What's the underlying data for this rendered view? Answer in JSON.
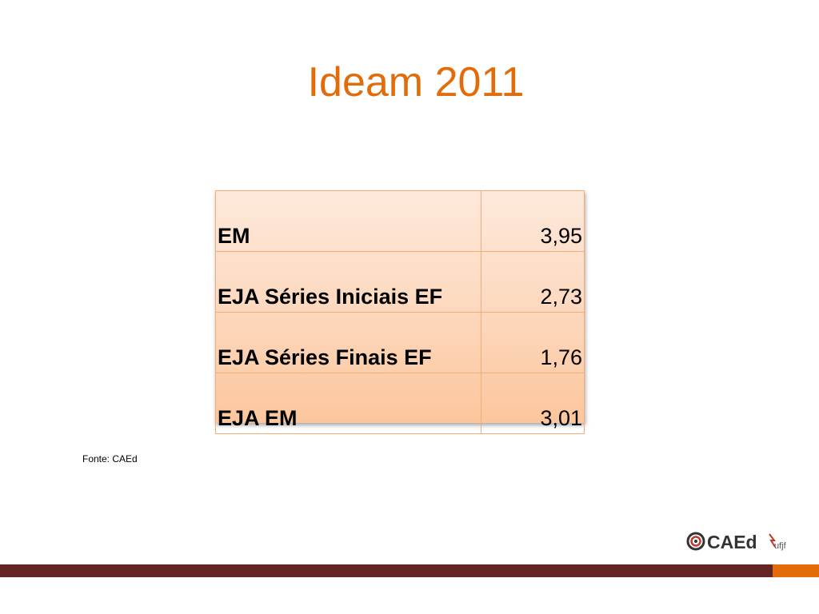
{
  "slide": {
    "title": "Ideam 2011",
    "source": "Fonte: CAEd",
    "colors": {
      "title": "#E36C0A",
      "footer_bar": "#632523",
      "footer_accent": "#E36C0A"
    }
  },
  "table": {
    "rows": [
      {
        "label": "EM",
        "value": "3,95"
      },
      {
        "label": "EJA Séries Iniciais EF",
        "value": "2,73"
      },
      {
        "label": "EJA Séries Finais EF",
        "value": "1,76"
      },
      {
        "label": "EJA EM",
        "value": "3,01"
      }
    ]
  },
  "logo": {
    "text": "CAEd",
    "subtext": "ufjf",
    "icon": "caed-logo-icon"
  }
}
